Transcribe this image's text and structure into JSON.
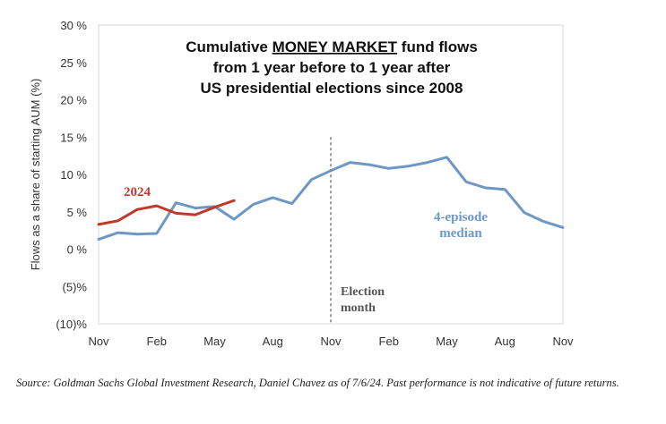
{
  "chart_data": {
    "type": "line",
    "title_lines": [
      {
        "pre": "Cumulative ",
        "underlined": "MONEY MARKET",
        "post": " fund flows"
      },
      {
        "pre": "from 1 year before to 1 year after",
        "underlined": "",
        "post": ""
      },
      {
        "pre": "US presidential elections since 2008",
        "underlined": "",
        "post": ""
      }
    ],
    "ylabel": "Flows as a share of starting AUM (%)",
    "xlabel": "",
    "ylim": [
      -10,
      30
    ],
    "y_ticks": [
      30,
      25,
      20,
      15,
      10,
      5,
      0,
      -5,
      -10
    ],
    "y_tick_labels": [
      "30 %",
      "25 %",
      "20 %",
      "15 %",
      "10 %",
      "5 %",
      "0 %",
      "(5)%",
      "(10)%"
    ],
    "x_range": [
      0,
      24
    ],
    "x_ticks": [
      0,
      3,
      6,
      9,
      12,
      15,
      18,
      21,
      24
    ],
    "x_tick_labels": [
      "Nov",
      "Feb",
      "May",
      "Aug",
      "Nov",
      "Feb",
      "May",
      "Aug",
      "Nov"
    ],
    "series": [
      {
        "name": "4-episode median",
        "color": "#6f97c6",
        "x": [
          0,
          1,
          2,
          3,
          4,
          5,
          6,
          7,
          8,
          9,
          10,
          11,
          12,
          13,
          14,
          15,
          16,
          17,
          18,
          19,
          20,
          21,
          22,
          23,
          24
        ],
        "y": [
          1.3,
          2.2,
          2.0,
          2.1,
          6.2,
          5.5,
          5.7,
          4.0,
          6.0,
          6.9,
          6.1,
          9.3,
          10.5,
          11.6,
          11.3,
          10.8,
          11.1,
          11.6,
          12.3,
          9.0,
          8.2,
          8.0,
          4.9,
          3.7,
          2.9
        ]
      },
      {
        "name": "2024",
        "color": "#c0392b",
        "x": [
          0,
          1,
          2,
          3,
          4,
          5,
          6,
          7
        ],
        "y": [
          3.3,
          3.8,
          5.3,
          5.8,
          4.8,
          4.6,
          5.6,
          6.5
        ]
      }
    ],
    "annotations": [
      {
        "text": "Election",
        "x": 12
      },
      {
        "text": "month",
        "x": 12
      }
    ],
    "election_line_x": 12,
    "grid": false,
    "legend": "inline labels"
  },
  "labels": {
    "series_2024": "2024",
    "median_line1": "4-episode",
    "median_line2": "median",
    "election_line1": "Election",
    "election_line2": "month"
  },
  "source": "Source: Goldman Sachs Global Investment Research, Daniel Chavez  as of 7/6/24. Past performance is not indicative of future returns."
}
